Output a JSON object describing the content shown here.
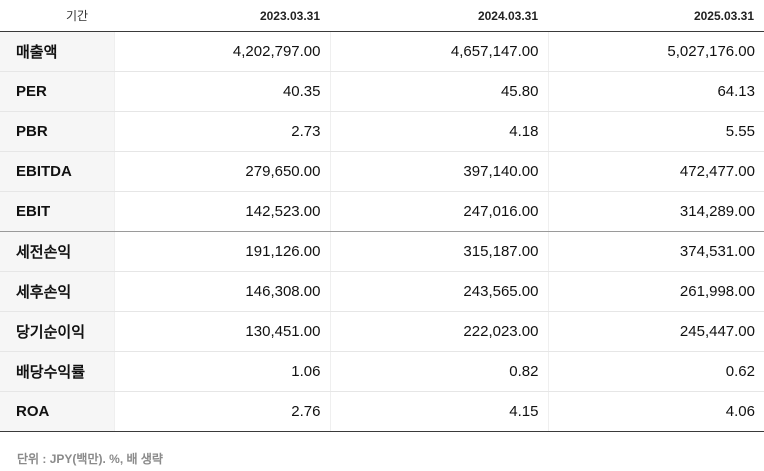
{
  "table": {
    "header": {
      "label": "기간",
      "periods": [
        "2023.03.31",
        "2024.03.31",
        "2025.03.31"
      ]
    },
    "rows": [
      {
        "label": "매출액",
        "values": [
          "4,202,797.00",
          "4,657,147.00",
          "5,027,176.00"
        ]
      },
      {
        "label": "PER",
        "values": [
          "40.35",
          "45.80",
          "64.13"
        ]
      },
      {
        "label": "PBR",
        "values": [
          "2.73",
          "4.18",
          "5.55"
        ]
      },
      {
        "label": "EBITDA",
        "values": [
          "279,650.00",
          "397,140.00",
          "472,477.00"
        ]
      },
      {
        "label": "EBIT",
        "values": [
          "142,523.00",
          "247,016.00",
          "314,289.00"
        ]
      },
      {
        "label": "세전손익",
        "values": [
          "191,126.00",
          "315,187.00",
          "374,531.00"
        ]
      },
      {
        "label": "세후손익",
        "values": [
          "146,308.00",
          "243,565.00",
          "261,998.00"
        ]
      },
      {
        "label": "당기순이익",
        "values": [
          "130,451.00",
          "222,023.00",
          "245,447.00"
        ]
      },
      {
        "label": "배당수익률",
        "values": [
          "1.06",
          "0.82",
          "0.62"
        ]
      },
      {
        "label": "ROA",
        "values": [
          "2.76",
          "4.15",
          "4.06"
        ]
      }
    ]
  },
  "footnote": "단위 : JPY(백만). %, 배 생략"
}
